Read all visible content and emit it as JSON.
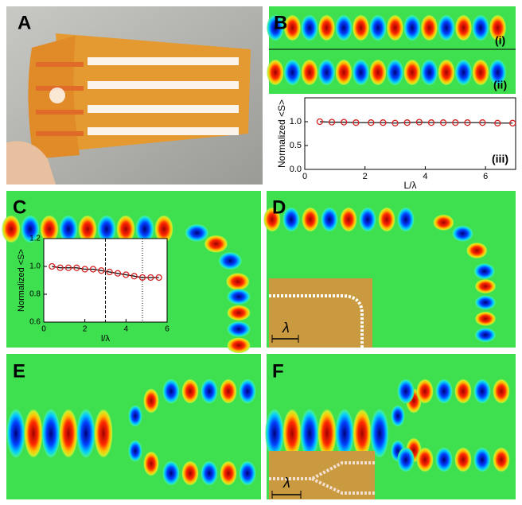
{
  "panel_labels": [
    "A",
    "B",
    "C",
    "D",
    "E",
    "F"
  ],
  "sub_labels": [
    "(i)",
    "(ii)"
  ],
  "scale_labels": [
    "λ",
    "λ"
  ],
  "chart_data": [
    {
      "type": "line",
      "annotation": "(iii)",
      "x_label": "L/λ",
      "y_label": "Normalized <S>",
      "x": [
        0.5,
        0.9,
        1.3,
        1.7,
        2.2,
        2.6,
        3.0,
        3.4,
        3.8,
        4.2,
        4.6,
        5.0,
        5.4,
        5.9,
        6.4,
        6.9
      ],
      "values": [
        1.0,
        0.99,
        0.99,
        0.98,
        0.98,
        0.98,
        0.97,
        0.98,
        0.99,
        0.98,
        0.98,
        0.98,
        0.98,
        0.98,
        0.97,
        0.97
      ],
      "color": "#d42020",
      "line_color": "#000000",
      "xlim": [
        0,
        7
      ],
      "xticks": [
        0,
        2,
        4,
        6
      ],
      "ylim": [
        0,
        1.5
      ],
      "yticks": [
        {
          "value": 0,
          "label": "0.0"
        },
        0.5,
        {
          "value": 1,
          "label": "1.0"
        }
      ]
    },
    {
      "type": "line",
      "x_label": "l/λ",
      "y_label": "Normalized <S>",
      "x": [
        0.4,
        0.8,
        1.2,
        1.6,
        2.0,
        2.4,
        2.8,
        3.2,
        3.6,
        4.0,
        4.4,
        4.8,
        5.2,
        5.6
      ],
      "values": [
        1.0,
        0.99,
        0.99,
        0.99,
        0.98,
        0.98,
        0.97,
        0.96,
        0.95,
        0.94,
        0.93,
        0.92,
        0.92,
        0.92
      ],
      "color": "#d42020",
      "line_color": "#000000",
      "reference_lines": [
        3.0,
        4.8
      ],
      "xlim": [
        0,
        6
      ],
      "xticks": [
        0,
        2,
        4,
        6
      ],
      "ylim": [
        0.6,
        1.2
      ],
      "yticks": [
        0.6,
        0.8,
        {
          "value": 1,
          "label": "1.0"
        },
        1.2
      ]
    }
  ]
}
